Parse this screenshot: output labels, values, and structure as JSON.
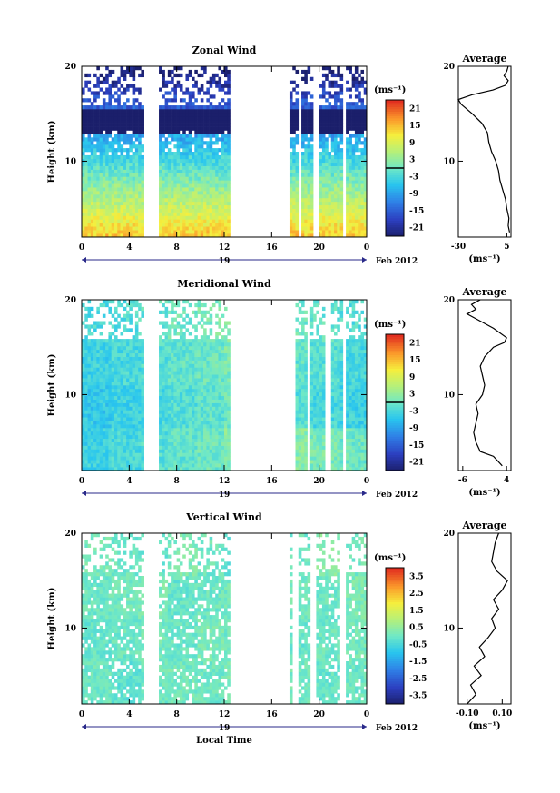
{
  "chart_data": [
    {
      "type": "heatmap",
      "title": "Zonal Wind",
      "ylabel": "Height (km)",
      "y_ticks": [
        "20",
        "10"
      ],
      "x_ticks": [
        "0",
        "4",
        "8",
        "12",
        "16",
        "20",
        "0"
      ],
      "x_day_label": "19",
      "x_month_label": "Feb 2012",
      "ylim": [
        2,
        20
      ],
      "xlim": [
        0,
        24
      ],
      "data_gaps_hours": [
        [
          5.3,
          6.5
        ],
        [
          12.6,
          17.5
        ],
        [
          18.3,
          18.6
        ],
        [
          19.6,
          19.9
        ],
        [
          21.9,
          22.3
        ]
      ],
      "colorbar": {
        "unit": "(ms⁻¹)",
        "ticks": [
          "21",
          "15",
          "9",
          "3",
          "-3",
          "-9",
          "-15",
          "-21"
        ],
        "range": [
          -24,
          24
        ]
      },
      "profile": {
        "title": "Average",
        "xlabel": "(ms⁻¹)",
        "x_ticks": [
          "-30",
          "5"
        ],
        "y_ticks": [
          "20",
          "10"
        ],
        "xlim": [
          -30,
          8
        ],
        "points": [
          [
            7,
            2.5
          ],
          [
            6,
            3.2
          ],
          [
            6.5,
            4
          ],
          [
            5,
            5
          ],
          [
            4,
            6
          ],
          [
            2,
            7
          ],
          [
            0,
            8
          ],
          [
            -1,
            9
          ],
          [
            -3,
            10
          ],
          [
            -6,
            11
          ],
          [
            -8,
            12
          ],
          [
            -9,
            13
          ],
          [
            -13,
            14
          ],
          [
            -20,
            15
          ],
          [
            -28,
            16
          ],
          [
            -30,
            16.5
          ],
          [
            -20,
            17
          ],
          [
            -5,
            17.5
          ],
          [
            4,
            18
          ],
          [
            6,
            18.5
          ],
          [
            3,
            19
          ],
          [
            5,
            19.5
          ],
          [
            6,
            20
          ]
        ]
      },
      "colors": [
        [
          -12,
          -6,
          -2,
          2,
          5,
          10,
          14,
          16,
          17,
          18
        ],
        [
          -14,
          -8,
          -3,
          1,
          4,
          9,
          12,
          14,
          16,
          17
        ],
        [
          -18,
          -10,
          -4,
          0,
          3,
          7,
          10,
          12,
          14,
          16
        ],
        [
          -22,
          -14,
          -6,
          -2,
          2,
          5,
          8,
          10,
          12,
          14
        ]
      ]
    },
    {
      "type": "heatmap",
      "title": "Meridional Wind",
      "ylabel": "Height (km)",
      "y_ticks": [
        "20",
        "10"
      ],
      "x_ticks": [
        "0",
        "4",
        "8",
        "12",
        "16",
        "20",
        "0"
      ],
      "x_day_label": "19",
      "x_month_label": "Feb 2012",
      "ylim": [
        2,
        20
      ],
      "xlim": [
        0,
        24
      ],
      "data_gaps_hours": [
        [
          5.3,
          6.5
        ],
        [
          12.6,
          18.0
        ],
        [
          19.0,
          19.3
        ],
        [
          20.6,
          20.9
        ],
        [
          21.9,
          22.3
        ]
      ],
      "colorbar": {
        "unit": "(ms⁻¹)",
        "ticks": [
          "21",
          "15",
          "9",
          "3",
          "-3",
          "-9",
          "-15",
          "-21"
        ],
        "range": [
          -24,
          24
        ]
      },
      "profile": {
        "title": "Average",
        "xlabel": "(ms⁻¹)",
        "x_ticks": [
          "-6",
          "4"
        ],
        "y_ticks": [
          "20",
          "10"
        ],
        "xlim": [
          -7,
          5
        ],
        "points": [
          [
            3,
            2.5
          ],
          [
            2,
            3
          ],
          [
            1,
            3.5
          ],
          [
            -2,
            4
          ],
          [
            -3,
            5
          ],
          [
            -3.5,
            6
          ],
          [
            -3,
            7
          ],
          [
            -2.5,
            8
          ],
          [
            -3,
            9
          ],
          [
            -1.5,
            10
          ],
          [
            -1,
            11
          ],
          [
            -1.5,
            12
          ],
          [
            -2,
            13
          ],
          [
            -1,
            14
          ],
          [
            1,
            15
          ],
          [
            3.5,
            15.5
          ],
          [
            4,
            16
          ],
          [
            1,
            17
          ],
          [
            -3,
            18
          ],
          [
            -5,
            18.5
          ],
          [
            -3,
            19
          ],
          [
            -4,
            19.5
          ],
          [
            -2,
            20
          ]
        ]
      },
      "colors": [
        [
          -3,
          -2,
          -1,
          0,
          1,
          2,
          1,
          0,
          -1,
          -2
        ],
        [
          -4,
          -3,
          -2,
          -1,
          0,
          1,
          0,
          -1,
          -2,
          -3
        ],
        [
          -5,
          -4,
          -3,
          -2,
          -1,
          0,
          -1,
          -2,
          -3,
          -4
        ],
        [
          -4,
          -3,
          -2,
          -1,
          0,
          2,
          3,
          2,
          1,
          0
        ]
      ]
    },
    {
      "type": "heatmap",
      "title": "Vertical Wind",
      "ylabel": "Height (km)",
      "y_ticks": [
        "20",
        "10"
      ],
      "x_ticks": [
        "0",
        "4",
        "8",
        "12",
        "16",
        "20",
        "0"
      ],
      "x_day_label": "19",
      "x_month_label": "Feb 2012",
      "xlabel": "Local Time",
      "ylim": [
        2,
        20
      ],
      "xlim": [
        0,
        24
      ],
      "data_gaps_hours": [
        [
          5.3,
          6.5
        ],
        [
          12.6,
          17.5
        ],
        [
          17.7,
          18.2
        ],
        [
          19.3,
          19.7
        ],
        [
          21.8,
          22.3
        ]
      ],
      "colorbar": {
        "unit": "(ms⁻¹)",
        "ticks": [
          "3.5",
          "2.5",
          "1.5",
          "0.5",
          "-0.5",
          "-1.5",
          "-2.5",
          "-3.5"
        ],
        "range": [
          -4,
          4
        ]
      },
      "profile": {
        "title": "Average",
        "xlabel": "(ms⁻¹)",
        "x_ticks": [
          "-0.10",
          "0.10"
        ],
        "y_ticks": [
          "20",
          "10"
        ],
        "xlim": [
          -0.15,
          0.15
        ],
        "points": [
          [
            -0.1,
            2
          ],
          [
            -0.05,
            3
          ],
          [
            -0.08,
            4
          ],
          [
            -0.02,
            5
          ],
          [
            -0.06,
            6
          ],
          [
            0.0,
            7
          ],
          [
            -0.03,
            8
          ],
          [
            0.02,
            9
          ],
          [
            0.06,
            10
          ],
          [
            0.04,
            11
          ],
          [
            0.08,
            12
          ],
          [
            0.05,
            13
          ],
          [
            0.1,
            14
          ],
          [
            0.13,
            15
          ],
          [
            0.07,
            16
          ],
          [
            0.04,
            17
          ],
          [
            0.05,
            18
          ],
          [
            0.06,
            19
          ],
          [
            0.08,
            20
          ]
        ]
      },
      "colors": [
        [
          0.1,
          0.0,
          -0.1,
          0.2,
          0.0,
          -0.2,
          0.1,
          0.0,
          0.3,
          0.1
        ],
        [
          0.0,
          0.1,
          0.2,
          -0.1,
          0.0,
          0.1,
          -0.2,
          0.1,
          0.0,
          0.2
        ],
        [
          -0.1,
          0.0,
          0.1,
          0.0,
          0.2,
          0.0,
          0.1,
          -0.1,
          0.0,
          0.1
        ],
        [
          0.0,
          -0.2,
          0.0,
          0.1,
          0.0,
          0.2,
          0.0,
          0.1,
          -0.1,
          0.0
        ]
      ]
    }
  ]
}
